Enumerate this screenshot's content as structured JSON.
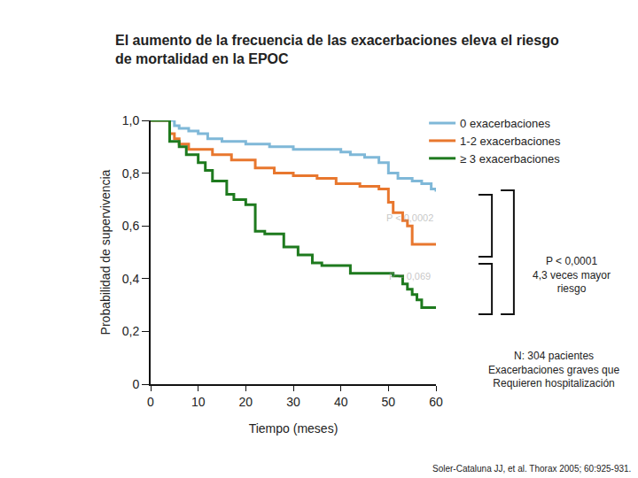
{
  "chart_data": {
    "type": "line",
    "line_style": "step",
    "title": "El aumento de la frecuencia de las exacerbaciones eleva el riesgo\nde mortalidad en la EPOC",
    "x_label": "Tiempo (meses)",
    "y_label": "Probabilidad de supervivencia",
    "xlim": [
      0,
      60
    ],
    "xticks": [
      0,
      10,
      20,
      30,
      40,
      50,
      60
    ],
    "ylim": [
      0,
      1
    ],
    "yticks": [
      0,
      {
        "value": 0.2,
        "label": "0,2"
      },
      {
        "value": 0.4,
        "label": "0,4"
      },
      {
        "value": 0.6,
        "label": "0,6"
      },
      {
        "value": 0.8,
        "label": "0,8"
      },
      {
        "value": 1,
        "label": "1,0"
      }
    ],
    "grid": false,
    "legend": "upper right",
    "series": [
      {
        "name": "0 exacerbaciones",
        "color": "#7fb8d8",
        "x": [
          0,
          5,
          6,
          8,
          10,
          12,
          15,
          20,
          25,
          30,
          35,
          40,
          42,
          45,
          48,
          50,
          52,
          55,
          57,
          59,
          60
        ],
        "values": [
          1,
          0.98,
          0.97,
          0.96,
          0.95,
          0.93,
          0.92,
          0.91,
          0.9,
          0.89,
          0.89,
          0.88,
          0.87,
          0.86,
          0.84,
          0.8,
          0.78,
          0.77,
          0.76,
          0.74,
          0.73
        ]
      },
      {
        "name": "1-2 exacerbaciones",
        "color": "#e8772e",
        "x": [
          0,
          4,
          5,
          6,
          8,
          13,
          17,
          22,
          26,
          30,
          35,
          39,
          44,
          48,
          50,
          51,
          53,
          54,
          55,
          60
        ],
        "values": [
          1,
          0.95,
          0.93,
          0.91,
          0.89,
          0.87,
          0.85,
          0.82,
          0.8,
          0.79,
          0.78,
          0.76,
          0.75,
          0.74,
          0.69,
          0.65,
          0.62,
          0.6,
          0.53,
          0.53
        ]
      },
      {
        "name": "≥ 3 exacerbaciones",
        "color": "#1e7a1e",
        "x": [
          0,
          4,
          6,
          7.5,
          10,
          11.5,
          13,
          16,
          17.5,
          20,
          22,
          24,
          28,
          31,
          34,
          36,
          42,
          51,
          53,
          54,
          55,
          56,
          57,
          60
        ],
        "values": [
          1,
          0.92,
          0.9,
          0.87,
          0.84,
          0.81,
          0.77,
          0.72,
          0.7,
          0.68,
          0.58,
          0.57,
          0.52,
          0.49,
          0.46,
          0.45,
          0.42,
          0.41,
          0.38,
          0.36,
          0.34,
          0.32,
          0.29,
          0.29
        ]
      }
    ],
    "annotations": [
      "P < 0,0002",
      "P = 0,069",
      "P < 0,0001\n4,3 veces mayor\nriesgo",
      "N: 304 pacientes\nExacerbaciones graves que\nRequieren hospitalización",
      "Soler-Cataluna JJ, et al. Thorax 2005; 60:925-931."
    ]
  }
}
